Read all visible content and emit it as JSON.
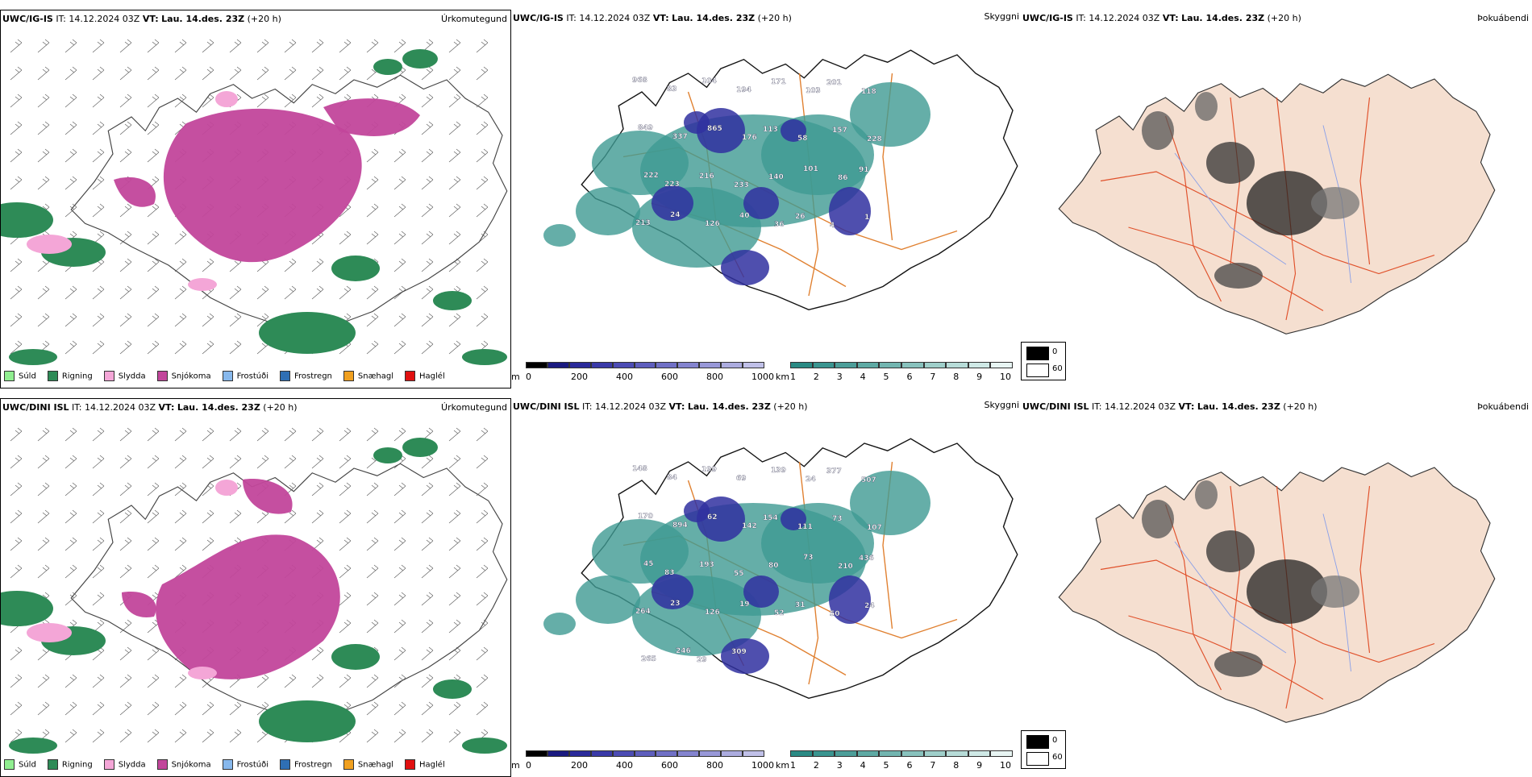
{
  "rows": [
    {
      "model": "UWC/IG-IS",
      "it_label": "IT:",
      "it_value": "14.12.2024 03Z",
      "vt_label": "VT:",
      "vt_value": "Lau. 14.des. 23Z",
      "lead": "(+20 h)",
      "panel1_right": "Úrkomutegund",
      "panel2_right": "Skyggni",
      "panel3_right": "Þokuábendi"
    },
    {
      "model": "UWC/DINI ISL",
      "it_label": "IT:",
      "it_value": "14.12.2024 03Z",
      "vt_label": "VT:",
      "vt_value": "Lau. 14.des. 23Z",
      "lead": "(+20 h)",
      "panel1_right": "Úrkomutegund",
      "panel2_right": "Skyggni",
      "panel3_right": "Þokuábendi"
    }
  ],
  "precip_legend": [
    {
      "label": "Súld",
      "color": "#90ee90"
    },
    {
      "label": "Rigning",
      "color": "#2e8b57"
    },
    {
      "label": "Slydda",
      "color": "#f4a6d7"
    },
    {
      "label": "Snjókoma",
      "color": "#c2469b"
    },
    {
      "label": "Frostúði",
      "color": "#87b8ec"
    },
    {
      "label": "Frostregn",
      "color": "#2f6fb5"
    },
    {
      "label": "Snæhagl",
      "color": "#f0a020"
    },
    {
      "label": "Haglél",
      "color": "#e01010"
    }
  ],
  "ceiling_bar": {
    "unit": "m",
    "ticks": [
      "0",
      "200",
      "400",
      "600",
      "800",
      "1000"
    ],
    "colors": [
      "#000000",
      "#1a1a80",
      "#2a2a9a",
      "#3a3aa8",
      "#4c4cb4",
      "#5e5ebd",
      "#7070c6",
      "#8484cf",
      "#9898d8",
      "#acacdf",
      "#c0c0e8"
    ]
  },
  "visibility_bar": {
    "unit": "km",
    "ticks": [
      "1",
      "2",
      "3",
      "4",
      "5",
      "6",
      "7",
      "8",
      "9",
      "10"
    ],
    "colors": [
      "#2a8a84",
      "#3a9590",
      "#4c9e99",
      "#5eaaa4",
      "#72b5b0",
      "#88c2bd",
      "#9fcfca",
      "#b7dcd8",
      "#cfe9e6",
      "#e8f5f3"
    ]
  },
  "fog_legend": [
    {
      "value": "0",
      "color": "#000000"
    },
    {
      "value": "60",
      "color": "#ffffff"
    }
  ],
  "ceiling_labels_top": [
    "968",
    "83",
    "104",
    "194",
    "171",
    "103",
    "201",
    "118",
    "849",
    "337",
    "865",
    "176",
    "113",
    "58",
    "157",
    "228",
    "222",
    "223",
    "216",
    "233",
    "140",
    "101",
    "86",
    "91",
    "213",
    "24",
    "126",
    "40",
    "36",
    "26",
    "4",
    "1"
  ],
  "ceiling_labels_bottom": [
    "148",
    "84",
    "199",
    "69",
    "139",
    "24",
    "377",
    "507",
    "170",
    "894",
    "62",
    "142",
    "154",
    "111",
    "73",
    "107",
    "45",
    "83",
    "193",
    "55",
    "80",
    "73",
    "210",
    "436",
    "264",
    "23",
    "126",
    "19",
    "52",
    "31",
    "50",
    "24",
    "265",
    "246",
    "29",
    "309"
  ]
}
